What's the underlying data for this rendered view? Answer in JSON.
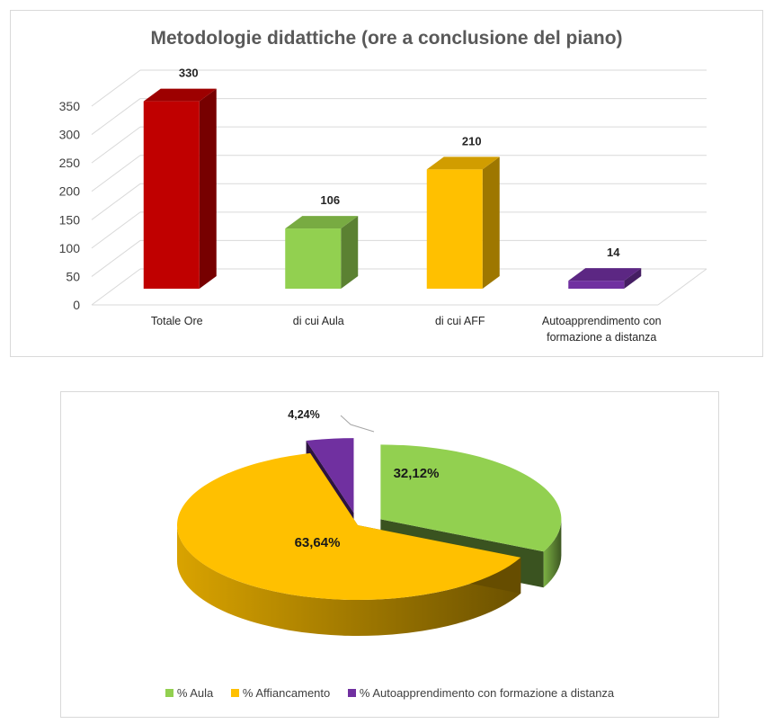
{
  "chart_data": [
    {
      "type": "bar",
      "title": "Metodologie didattiche (ore a conclusione del piano)",
      "categories": [
        "Totale Ore",
        "di cui Aula",
        "di cui AFF",
        "Autoapprendimento con formazione a distanza"
      ],
      "category_label_lines": [
        [
          "Totale Ore"
        ],
        [
          "di cui Aula"
        ],
        [
          "di cui AFF"
        ],
        [
          "Autoapprendimento con",
          "formazione a distanza"
        ]
      ],
      "values": [
        330,
        106,
        210,
        14
      ],
      "data_labels": [
        "330",
        "106",
        "210",
        "14"
      ],
      "ylim": [
        0,
        350
      ],
      "yticks": [
        "0",
        "50",
        "100",
        "150",
        "200",
        "250",
        "300",
        "350"
      ],
      "xlabel": "",
      "ylabel": "",
      "grid": true,
      "three_d": true,
      "bar_colors": [
        "#c00000",
        "#92d050",
        "#ffc000",
        "#7030a0"
      ]
    },
    {
      "type": "pie",
      "three_d": true,
      "labels": [
        "% Aula",
        "% Affiancamento",
        "% Autoapprendimento con formazione a distanza"
      ],
      "legend_labels": [
        "%  Aula",
        "% Affiancamento",
        "% Autoapprendimento con formazione a distanza"
      ],
      "values": [
        32.12,
        63.64,
        4.24
      ],
      "data_labels": [
        "32,12%",
        "63,64%",
        "4,24%"
      ],
      "colors": [
        "#92d050",
        "#ffc000",
        "#7030a0"
      ],
      "legend_position": "bottom"
    }
  ]
}
